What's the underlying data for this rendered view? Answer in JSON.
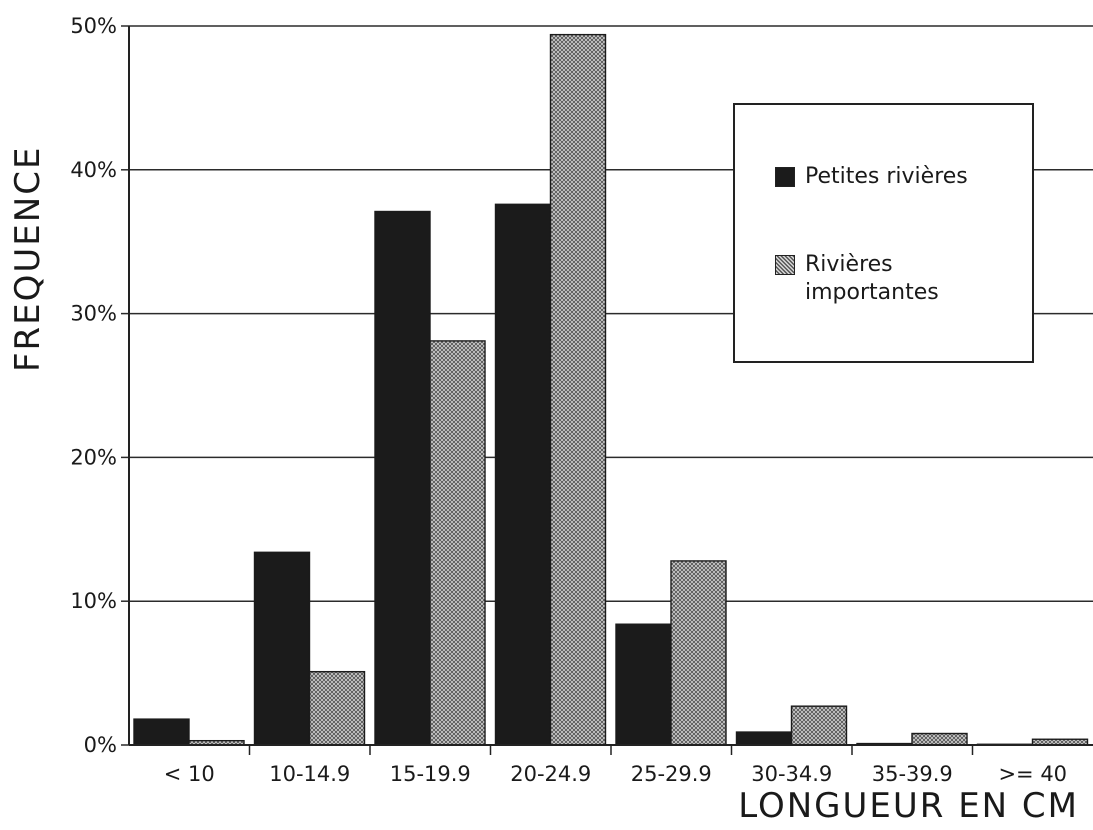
{
  "chart_data": {
    "type": "bar",
    "ylabel": "FREQUENCE",
    "xlabel": "LONGUEUR EN CM",
    "y_ticks": [
      "0%",
      "10%",
      "20%",
      "30%",
      "40%",
      "50%"
    ],
    "ylim": [
      0,
      50
    ],
    "grid": true,
    "legend_position": "top-right",
    "categories": [
      "< 10",
      "10-14.9",
      "15-19.9",
      "20-24.9",
      "25-29.9",
      "30-34.9",
      "35-39.9",
      ">= 40"
    ],
    "series": [
      {
        "name": "Petites rivières",
        "color": "#1b1b1b",
        "pattern": "solid",
        "values": [
          1.8,
          13.4,
          37.1,
          37.6,
          8.4,
          0.9,
          0.1,
          0.05
        ]
      },
      {
        "name": "Rivières\nimportantes",
        "color": "#8c8c8c",
        "pattern": "crosshatch",
        "values": [
          0.3,
          5.1,
          28.1,
          49.4,
          12.8,
          2.7,
          0.8,
          0.4
        ]
      }
    ]
  }
}
